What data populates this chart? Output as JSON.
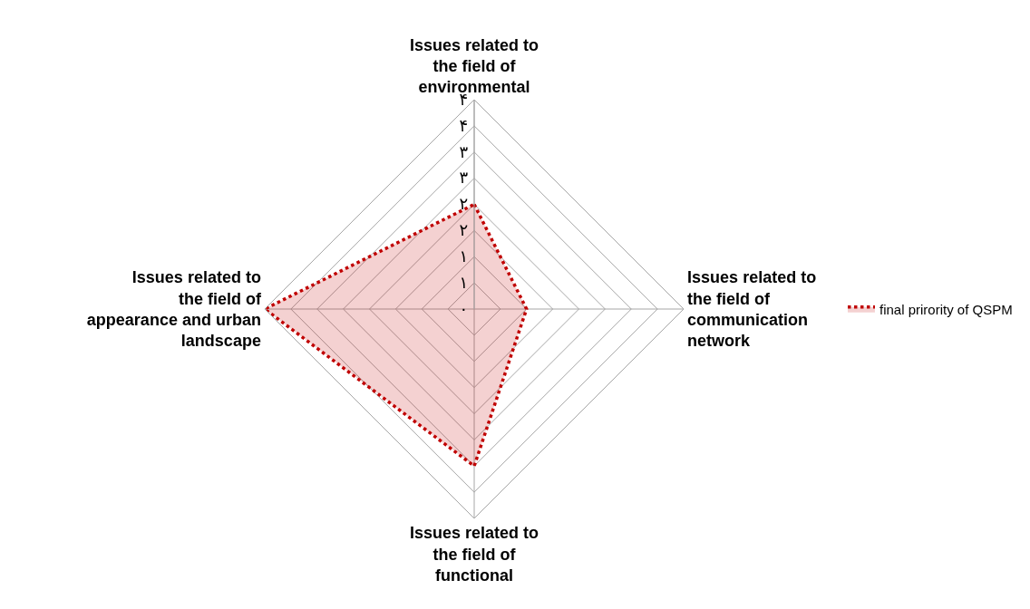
{
  "chart_data": {
    "type": "radar",
    "categories": [
      "Issues related to the field of environmental",
      "Issues related to the field of communication network",
      "Issues related to the field of functional",
      "Issues related to the field of appearance and urban landscape"
    ],
    "series": [
      {
        "name": "final prirority of QSPM",
        "color": "#c00000",
        "values": [
          2,
          1,
          3,
          4
        ]
      }
    ],
    "ylim": [
      0,
      4
    ],
    "yticks": [
      {
        "value": 0,
        "label": "۰"
      },
      {
        "value": 0.5,
        "label": "۱"
      },
      {
        "value": 1,
        "label": "۱"
      },
      {
        "value": 1.5,
        "label": "۲"
      },
      {
        "value": 2,
        "label": "۲"
      },
      {
        "value": 2.5,
        "label": "۳"
      },
      {
        "value": 3,
        "label": "۳"
      },
      {
        "value": 3.5,
        "label": "۴"
      },
      {
        "value": 4,
        "label": "۴"
      }
    ],
    "grid": true,
    "legend": "right",
    "line_style": "dotted",
    "marker": "none"
  }
}
